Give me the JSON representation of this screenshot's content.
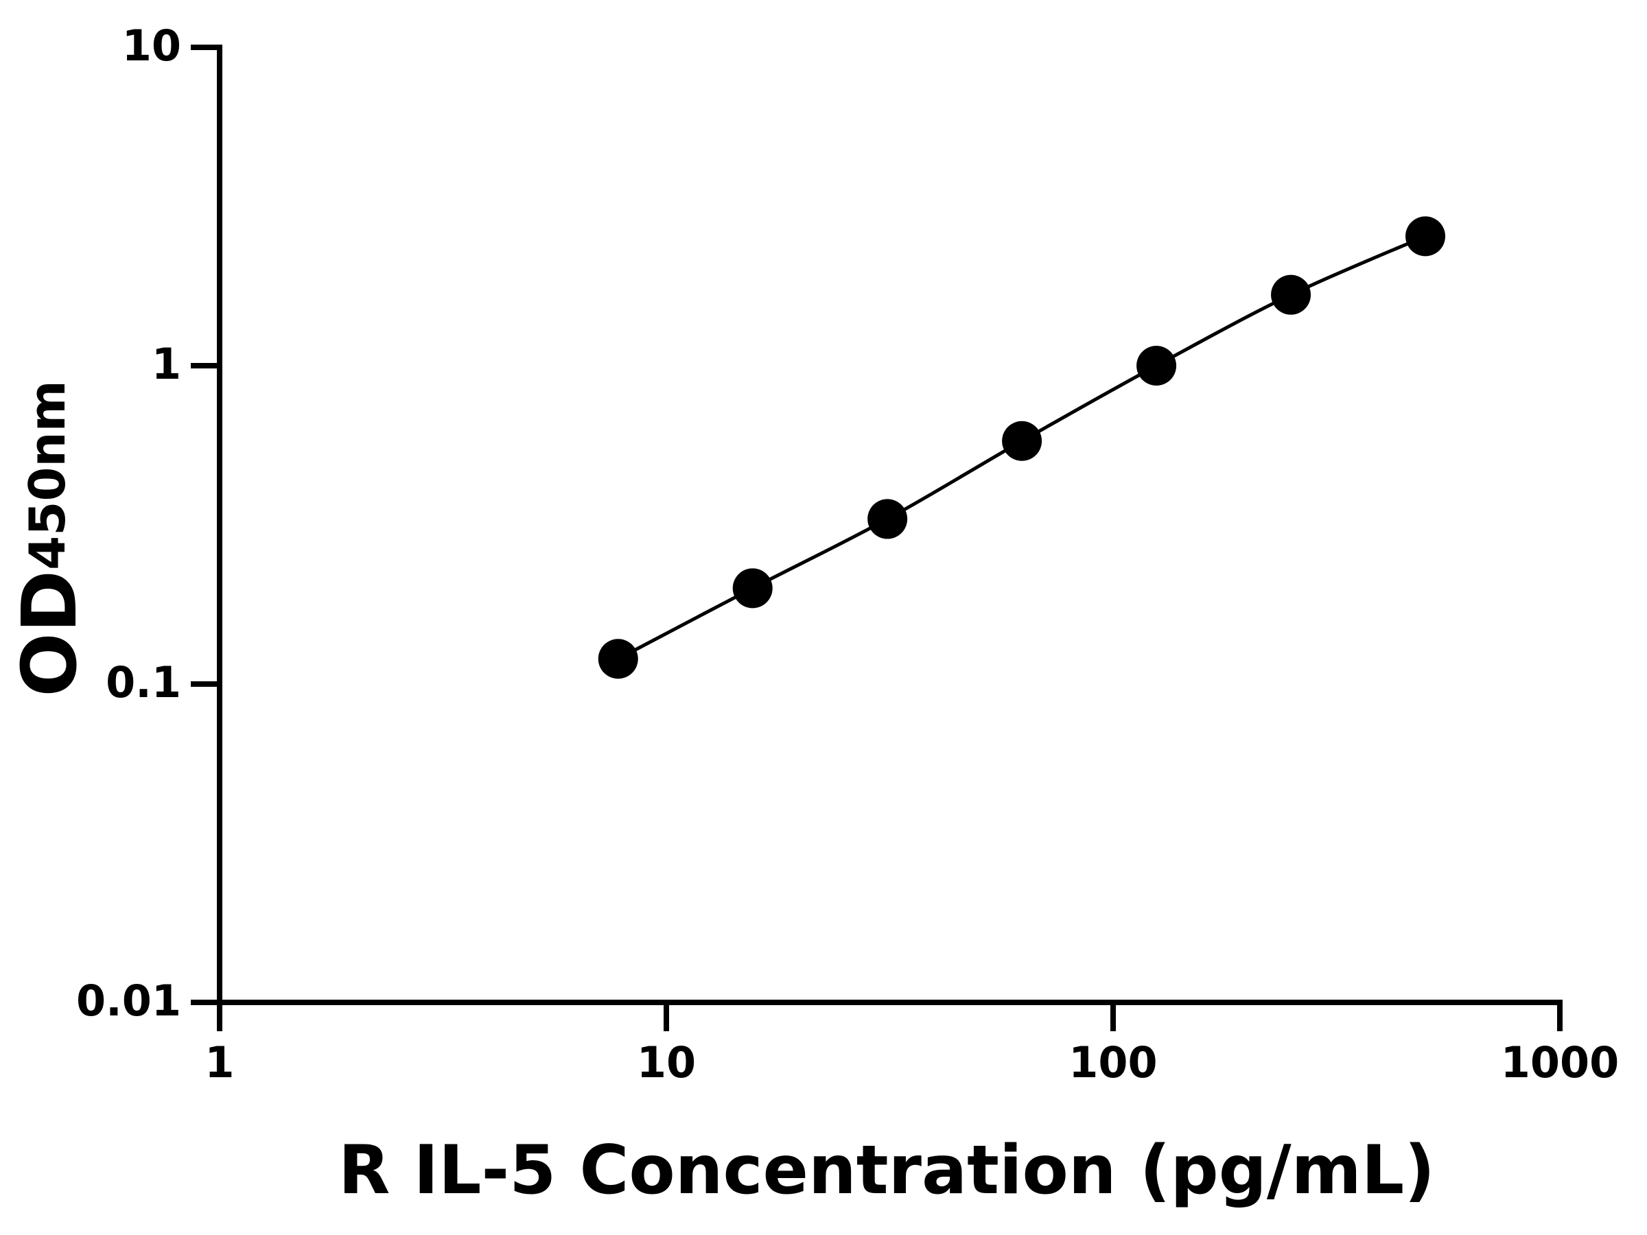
{
  "chart_data": {
    "type": "scatter",
    "xlabel": "R IL-5 Concentration (pg/mL)",
    "ylabel": "OD",
    "ylabel_subscript": "450nm",
    "x": [
      7.8,
      15.6,
      31.25,
      62.5,
      125,
      250,
      500
    ],
    "series": [
      {
        "color": "#000000",
        "values": [
          0.12,
          0.2,
          0.33,
          0.58,
          1.0,
          1.67,
          2.55
        ]
      }
    ],
    "xscale": "log",
    "yscale": "log",
    "xlim": [
      1,
      1000
    ],
    "xticks": [
      1,
      10,
      100,
      1000
    ],
    "ylim": [
      0.01,
      10
    ],
    "yticks": [
      0.01,
      0.1,
      1,
      10
    ],
    "fit_line": true,
    "grid": false
  }
}
